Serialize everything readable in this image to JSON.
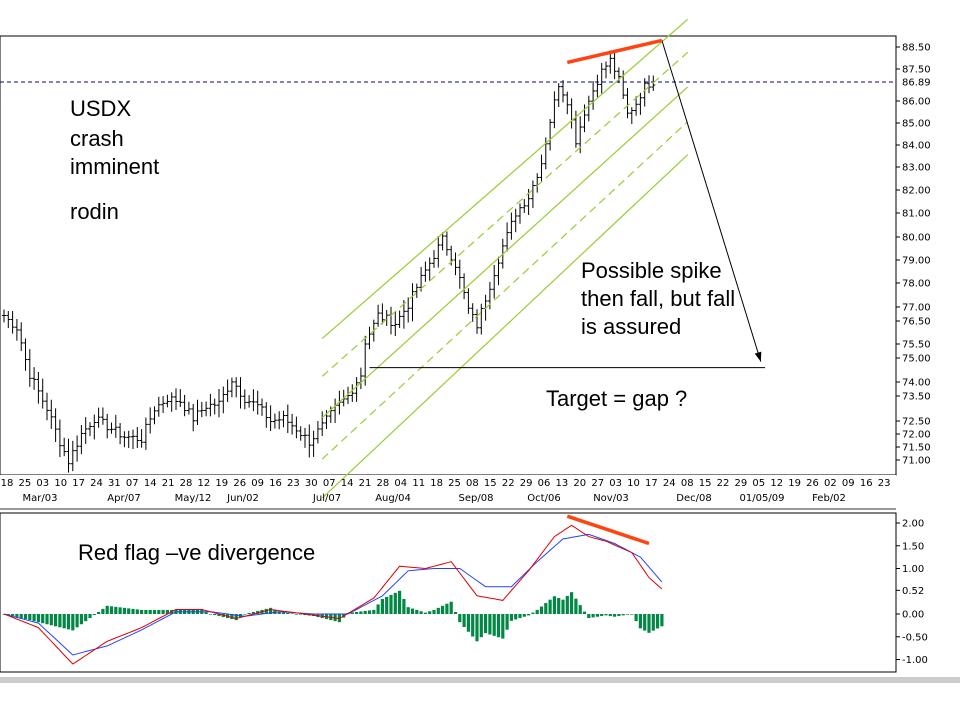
{
  "annotations": {
    "title_lines": [
      "USDX",
      "crash",
      "imminent"
    ],
    "author": "rodin",
    "spike_lines": [
      "Possible spike",
      "then fall, but fall",
      "is assured"
    ],
    "target": "Target = gap ?",
    "divergence": "Red flag –ve divergence"
  },
  "colors": {
    "price_bar": "#000000",
    "channel": "#99cc33",
    "divergence": "#ff4411",
    "macd_line": "#dd0000",
    "signal_line": "#2244ff",
    "histogram": "#008844",
    "current_price_line": "#000099"
  },
  "chart_data": [
    {
      "type": "ohlc",
      "y_ticks": [
        "88.50",
        "87.50",
        "86.00",
        "85.00",
        "84.00",
        "83.00",
        "82.00",
        "81.00",
        "80.00",
        "79.00",
        "78.00",
        "77.00",
        "76.50",
        "75.50",
        "75.00",
        "74.00",
        "73.50",
        "72.50",
        "72.00",
        "71.50",
        "71.00"
      ],
      "current_price_label": "86.89",
      "current_price": 86.89,
      "x_ticks": [
        "18",
        "25",
        "03",
        "10",
        "17",
        "24",
        "31",
        "07",
        "14",
        "21",
        "28",
        "12",
        "19",
        "26",
        "09",
        "16",
        "23",
        "30",
        "07",
        "14",
        "21",
        "28",
        "04",
        "11",
        "18",
        "25",
        "08",
        "15",
        "22",
        "29",
        "06",
        "13",
        "20",
        "27",
        "03",
        "10",
        "17",
        "24",
        "08",
        "15",
        "22",
        "29",
        "05",
        "12",
        "19",
        "26",
        "02",
        "09",
        "16",
        "23"
      ],
      "month_labels": [
        "Mar/03",
        "Apr/07",
        "May/12",
        "Jun/02",
        "Jul/07",
        "Aug/04",
        "Sep/08",
        "Oct/06",
        "Nov/03",
        "Dec/08",
        "01/05/09",
        "Feb/02"
      ],
      "trend": [
        {
          "i": 0,
          "v": 76.7
        },
        {
          "i": 3,
          "v": 76.2
        },
        {
          "i": 6,
          "v": 74.3
        },
        {
          "i": 10,
          "v": 73.0
        },
        {
          "i": 13,
          "v": 71.7
        },
        {
          "i": 15,
          "v": 70.95
        },
        {
          "i": 18,
          "v": 72.0
        },
        {
          "i": 21,
          "v": 72.6
        },
        {
          "i": 24,
          "v": 72.3
        },
        {
          "i": 28,
          "v": 71.9
        },
        {
          "i": 32,
          "v": 71.8
        },
        {
          "i": 35,
          "v": 73.0
        },
        {
          "i": 38,
          "v": 73.4
        },
        {
          "i": 41,
          "v": 73.3
        },
        {
          "i": 44,
          "v": 72.6
        },
        {
          "i": 47,
          "v": 73.1
        },
        {
          "i": 50,
          "v": 73.2
        },
        {
          "i": 53,
          "v": 74.1
        },
        {
          "i": 56,
          "v": 73.4
        },
        {
          "i": 59,
          "v": 73.1
        },
        {
          "i": 62,
          "v": 72.5
        },
        {
          "i": 65,
          "v": 72.6
        },
        {
          "i": 68,
          "v": 72.2
        },
        {
          "i": 71,
          "v": 71.7
        },
        {
          "i": 74,
          "v": 72.3
        },
        {
          "i": 77,
          "v": 73.0
        },
        {
          "i": 80,
          "v": 73.5
        },
        {
          "i": 83,
          "v": 74.3
        },
        {
          "i": 84,
          "v": 75.6
        },
        {
          "i": 87,
          "v": 76.7
        },
        {
          "i": 91,
          "v": 76.4
        },
        {
          "i": 94,
          "v": 77.1
        },
        {
          "i": 97,
          "v": 78.2
        },
        {
          "i": 100,
          "v": 79.2
        },
        {
          "i": 102,
          "v": 79.9
        },
        {
          "i": 105,
          "v": 78.8
        },
        {
          "i": 108,
          "v": 76.9
        },
        {
          "i": 110,
          "v": 76.3
        },
        {
          "i": 113,
          "v": 77.9
        },
        {
          "i": 116,
          "v": 79.6
        },
        {
          "i": 119,
          "v": 81.0
        },
        {
          "i": 122,
          "v": 81.7
        },
        {
          "i": 125,
          "v": 83.2
        },
        {
          "i": 127,
          "v": 85.1
        },
        {
          "i": 129,
          "v": 86.8
        },
        {
          "i": 131,
          "v": 86.0
        },
        {
          "i": 133,
          "v": 84.2
        },
        {
          "i": 135,
          "v": 85.5
        },
        {
          "i": 137,
          "v": 86.5
        },
        {
          "i": 139,
          "v": 87.4
        },
        {
          "i": 141,
          "v": 87.9
        },
        {
          "i": 143,
          "v": 87.0
        },
        {
          "i": 145,
          "v": 85.4
        },
        {
          "i": 147,
          "v": 85.9
        },
        {
          "i": 149,
          "v": 86.7
        },
        {
          "i": 151,
          "v": 86.9
        }
      ],
      "channel": {
        "slope_per_bar": 0.165,
        "anchor_bar": 95,
        "upper": 79.2,
        "mid_upper": 77.7,
        "mid": 76.1,
        "mid_lower": 74.5,
        "lower": 73.0,
        "start_bar": 74,
        "end_bar": 159
      },
      "divergence_price": {
        "start_bar": 131,
        "start_value": 87.8,
        "end_bar": 153,
        "end_value": 88.8
      },
      "gap_line": {
        "start_bar": 85,
        "end_bar": 177,
        "value": 74.6
      },
      "projection": {
        "start_bar": 153,
        "start_value": 88.8,
        "end_bar": 176,
        "end_value": 74.6
      }
    },
    {
      "type": "macd",
      "y_ticks": [
        "2.00",
        "1.50",
        "1.00",
        "0.52",
        "0.00",
        "-0.50",
        "-1.00"
      ],
      "signal_label": "0.52",
      "macd": [
        {
          "i": 0,
          "v": 0.0
        },
        {
          "i": 8,
          "v": -0.3
        },
        {
          "i": 16,
          "v": -1.1
        },
        {
          "i": 24,
          "v": -0.6
        },
        {
          "i": 32,
          "v": -0.3
        },
        {
          "i": 40,
          "v": 0.1
        },
        {
          "i": 46,
          "v": 0.1
        },
        {
          "i": 54,
          "v": -0.1
        },
        {
          "i": 62,
          "v": 0.1
        },
        {
          "i": 70,
          "v": 0.0
        },
        {
          "i": 78,
          "v": -0.1
        },
        {
          "i": 86,
          "v": 0.35
        },
        {
          "i": 92,
          "v": 1.05
        },
        {
          "i": 98,
          "v": 1.0
        },
        {
          "i": 104,
          "v": 1.15
        },
        {
          "i": 110,
          "v": 0.4
        },
        {
          "i": 116,
          "v": 0.3
        },
        {
          "i": 122,
          "v": 0.95
        },
        {
          "i": 128,
          "v": 1.7
        },
        {
          "i": 132,
          "v": 1.95
        },
        {
          "i": 136,
          "v": 1.7
        },
        {
          "i": 140,
          "v": 1.6
        },
        {
          "i": 146,
          "v": 1.35
        },
        {
          "i": 150,
          "v": 0.8
        },
        {
          "i": 153,
          "v": 0.55
        }
      ],
      "signal": [
        {
          "i": 0,
          "v": 0.0
        },
        {
          "i": 8,
          "v": -0.2
        },
        {
          "i": 16,
          "v": -0.9
        },
        {
          "i": 24,
          "v": -0.7
        },
        {
          "i": 32,
          "v": -0.35
        },
        {
          "i": 40,
          "v": 0.05
        },
        {
          "i": 48,
          "v": 0.05
        },
        {
          "i": 56,
          "v": -0.05
        },
        {
          "i": 64,
          "v": 0.05
        },
        {
          "i": 72,
          "v": 0.0
        },
        {
          "i": 80,
          "v": 0.0
        },
        {
          "i": 88,
          "v": 0.4
        },
        {
          "i": 94,
          "v": 0.95
        },
        {
          "i": 100,
          "v": 1.0
        },
        {
          "i": 106,
          "v": 1.0
        },
        {
          "i": 112,
          "v": 0.6
        },
        {
          "i": 118,
          "v": 0.6
        },
        {
          "i": 124,
          "v": 1.15
        },
        {
          "i": 130,
          "v": 1.65
        },
        {
          "i": 136,
          "v": 1.75
        },
        {
          "i": 142,
          "v": 1.55
        },
        {
          "i": 148,
          "v": 1.25
        },
        {
          "i": 153,
          "v": 0.7
        }
      ],
      "divergence": {
        "start_bar": 131,
        "start_value": 2.15,
        "end_bar": 150,
        "end_value": 1.55
      }
    }
  ]
}
